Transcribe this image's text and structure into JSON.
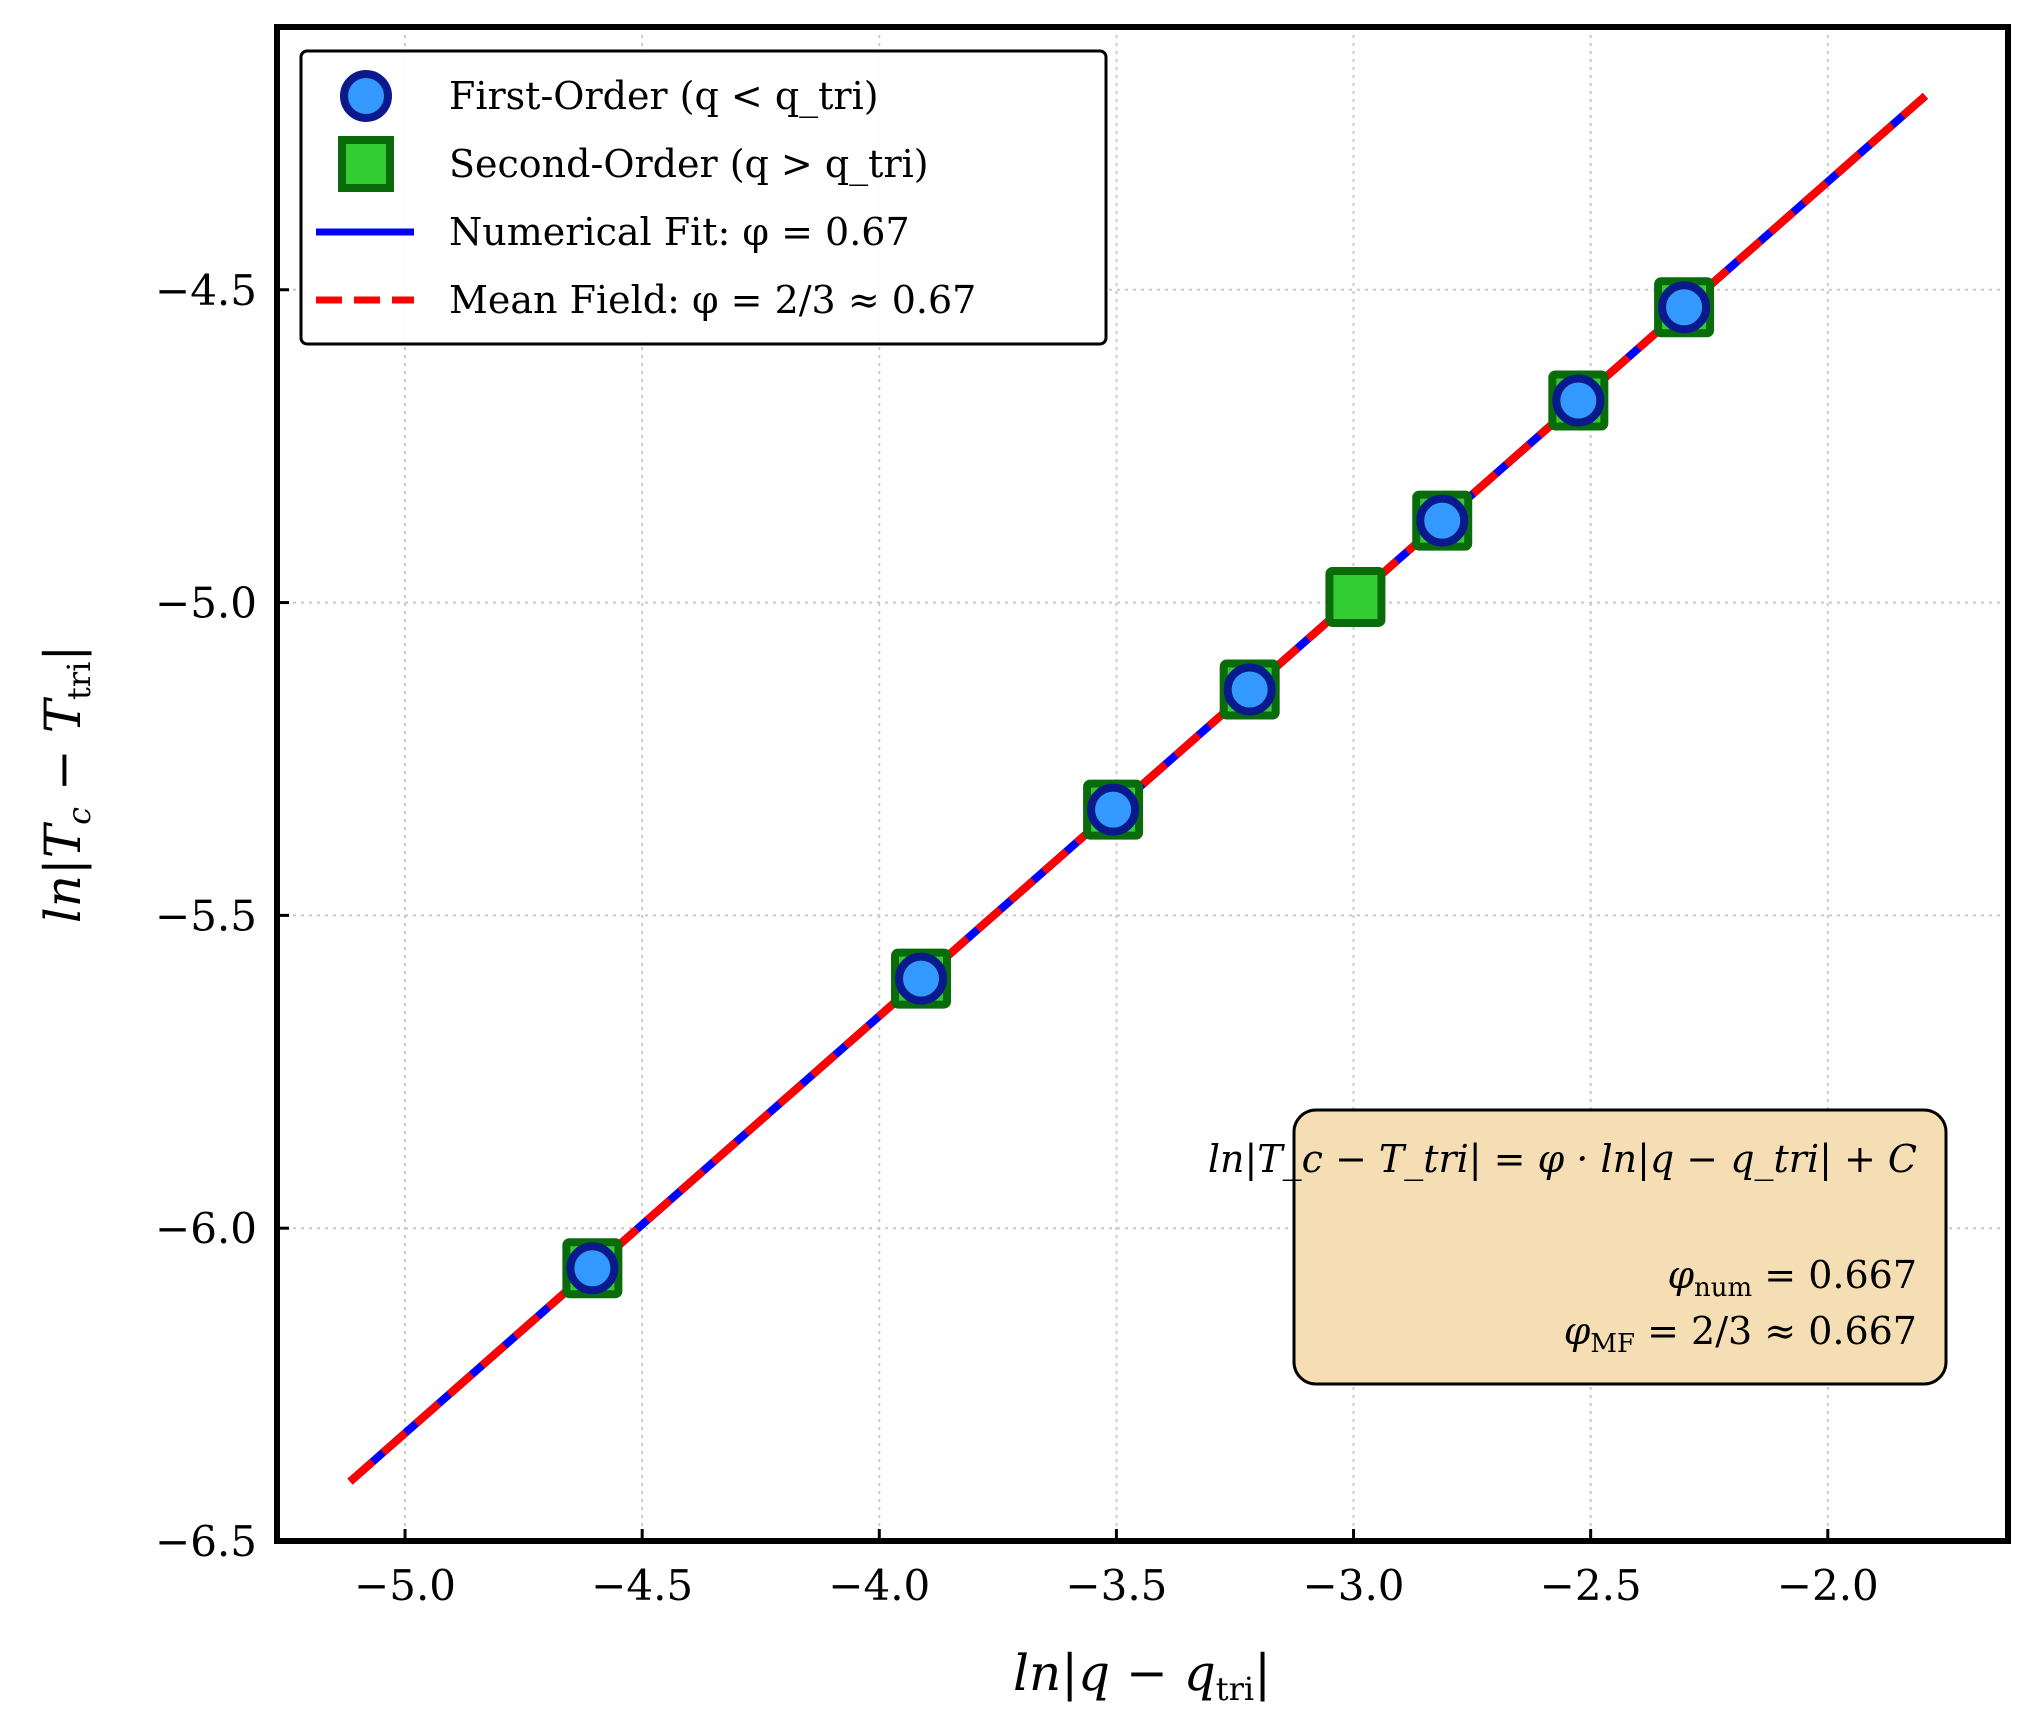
{
  "chart_data": {
    "type": "scatter",
    "title": "",
    "xlabel": {
      "main": "ln|q − q",
      "sub": "tri",
      "tail": "|"
    },
    "ylabel": {
      "main": "ln|T",
      "sub1": "c",
      "mid": " − T",
      "sub2": "tri",
      "tail": "|"
    },
    "xlim": [
      -5.27,
      -1.62
    ],
    "ylim": [
      -6.5,
      -4.08
    ],
    "xticks": [
      -5.0,
      -4.5,
      -4.0,
      -3.5,
      -3.0,
      -2.5,
      -2.0
    ],
    "xtick_labels": [
      "−5.0",
      "−4.5",
      "−4.0",
      "−3.5",
      "−3.0",
      "−2.5",
      "−2.0"
    ],
    "yticks": [
      -6.5,
      -6.0,
      -5.5,
      -5.0,
      -4.5
    ],
    "ytick_labels": [
      "−6.5",
      "−6.0",
      "−5.5",
      "−5.0",
      "−4.5"
    ],
    "grid": true,
    "legend_position": "top-left",
    "series": [
      {
        "name": "First-Order (q < q_tri)",
        "kind": "marker-circle",
        "color": "#3399ff",
        "edge": "#0a1a8c",
        "points": [
          [
            -4.605,
            -6.064
          ],
          [
            -3.912,
            -5.601
          ],
          [
            -3.507,
            -5.331
          ],
          [
            -3.219,
            -5.139
          ],
          [
            -2.813,
            -4.869
          ],
          [
            -2.526,
            -4.677
          ],
          [
            -2.303,
            -4.528
          ]
        ]
      },
      {
        "name": "Second-Order (q > q_tri)",
        "kind": "marker-square",
        "color": "#33cc33",
        "edge": "#0a6b0a",
        "points": [
          [
            -4.605,
            -6.064
          ],
          [
            -3.912,
            -5.601
          ],
          [
            -3.507,
            -5.331
          ],
          [
            -3.219,
            -5.139
          ],
          [
            -2.996,
            -4.991
          ],
          [
            -2.813,
            -4.869
          ],
          [
            -2.526,
            -4.677
          ],
          [
            -2.303,
            -4.528
          ]
        ]
      },
      {
        "name": "Numerical Fit: φ = 0.67",
        "kind": "line-solid",
        "color": "#0000ff",
        "x": [
          -5.116,
          -1.794
        ],
        "y": [
          -6.405,
          -4.19
        ]
      },
      {
        "name": "Mean Field: φ = 2/3 ≈ 0.67",
        "kind": "line-dashed",
        "color": "#ff0000",
        "x": [
          -5.116,
          -1.794
        ],
        "y": [
          -6.405,
          -4.19
        ]
      }
    ],
    "annotation": {
      "equation": "ln|T_c − T_tri| = φ · ln|q − q_tri| + C",
      "phi_num": "0.667",
      "phi_mf": "2/3 ≈ 0.667",
      "position": "bottom-right",
      "background": "#f5deb3"
    }
  }
}
